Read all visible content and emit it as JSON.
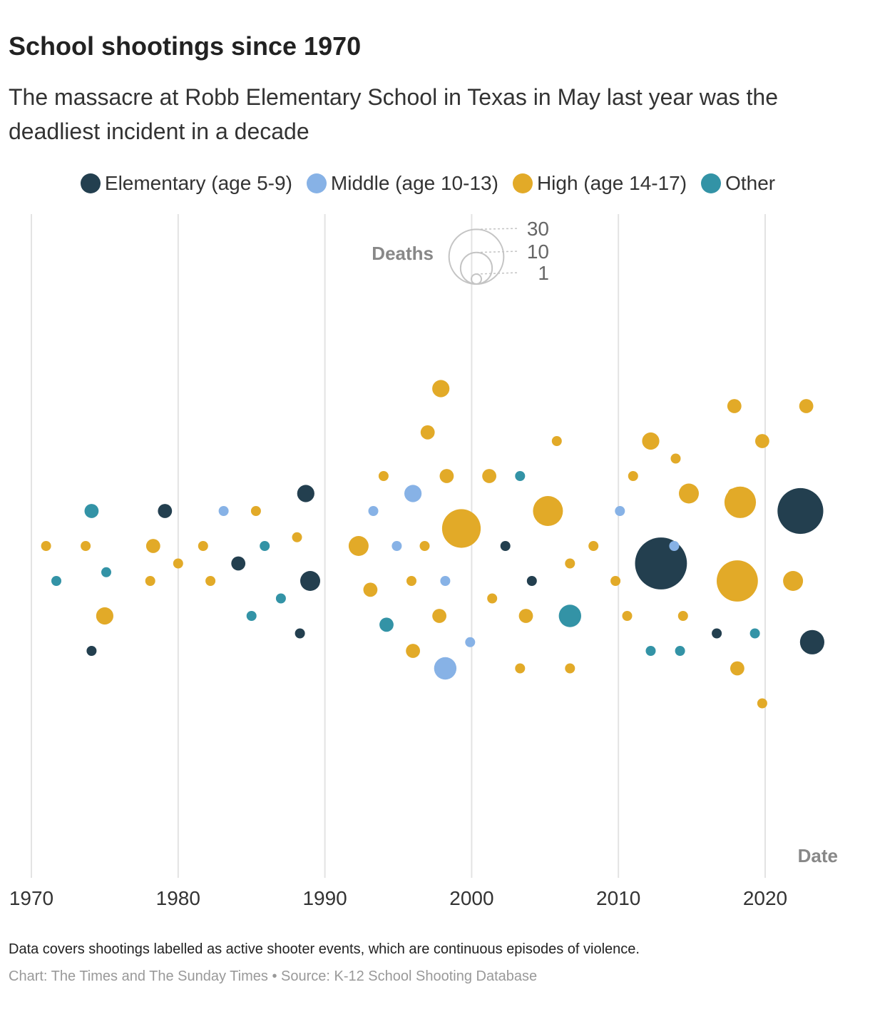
{
  "header": {
    "title": "School shootings since 1970",
    "subtitle": "The massacre at Robb Elementary School in Texas in May last year was the deadliest incident in a decade"
  },
  "legend": [
    {
      "key": "elementary",
      "label": "Elementary (age 5-9)",
      "color": "#233f4f"
    },
    {
      "key": "middle",
      "label": "Middle (age 10-13)",
      "color": "#87b2e6"
    },
    {
      "key": "high",
      "label": "High (age 14-17)",
      "color": "#e2aa28"
    },
    {
      "key": "other",
      "label": "Other",
      "color": "#3393a6"
    }
  ],
  "footer": {
    "note": "Data covers shootings labelled as active shooter events, which are continuous episodes of violence.",
    "credit": "Chart: The Times and The Sunday Times • Source: K-12 School Shooting Database"
  },
  "chart_data": {
    "type": "scatter",
    "title": "School shootings since 1970",
    "xlabel": "Date",
    "xlim": [
      1970,
      2025
    ],
    "x_ticks": [
      "1970",
      "1980",
      "1990",
      "2000",
      "2010",
      "2020"
    ],
    "size_legend": {
      "title": "Deaths",
      "values": [
        30,
        10,
        1
      ]
    },
    "series": [
      {
        "name": "Elementary (age 5-9)",
        "key": "elementary",
        "color": "#233f4f",
        "points": [
          {
            "x": 1974.1,
            "y": -6,
            "deaths": 1
          },
          {
            "x": 1979.1,
            "y": 2,
            "deaths": 2
          },
          {
            "x": 1984.1,
            "y": -1,
            "deaths": 2
          },
          {
            "x": 1988.3,
            "y": -5,
            "deaths": 1
          },
          {
            "x": 1988.7,
            "y": 3,
            "deaths": 3
          },
          {
            "x": 1989.0,
            "y": -2,
            "deaths": 4
          },
          {
            "x": 2002.3,
            "y": 0,
            "deaths": 1
          },
          {
            "x": 2004.1,
            "y": -2,
            "deaths": 1
          },
          {
            "x": 2012.9,
            "y": -1,
            "deaths": 27
          },
          {
            "x": 2016.7,
            "y": -5,
            "deaths": 1
          },
          {
            "x": 2022.4,
            "y": 2,
            "deaths": 21
          },
          {
            "x": 2023.2,
            "y": -5.5,
            "deaths": 6
          }
        ]
      },
      {
        "name": "Middle (age 10-13)",
        "key": "middle",
        "color": "#87b2e6",
        "points": [
          {
            "x": 1983.1,
            "y": 2,
            "deaths": 1
          },
          {
            "x": 1993.3,
            "y": 2,
            "deaths": 1
          },
          {
            "x": 1994.9,
            "y": 0,
            "deaths": 1
          },
          {
            "x": 1996.0,
            "y": 3,
            "deaths": 3
          },
          {
            "x": 1998.2,
            "y": -2,
            "deaths": 1
          },
          {
            "x": 1998.2,
            "y": -7,
            "deaths": 5
          },
          {
            "x": 1999.9,
            "y": -5.5,
            "deaths": 1
          },
          {
            "x": 2010.1,
            "y": 2,
            "deaths": 1
          },
          {
            "x": 2013.8,
            "y": 0,
            "deaths": 1
          }
        ]
      },
      {
        "name": "High (age 14-17)",
        "key": "high",
        "color": "#e2aa28",
        "points": [
          {
            "x": 1971.0,
            "y": 0,
            "deaths": 1
          },
          {
            "x": 1973.7,
            "y": 0,
            "deaths": 1
          },
          {
            "x": 1975.0,
            "y": -4,
            "deaths": 3
          },
          {
            "x": 1978.1,
            "y": -2,
            "deaths": 1
          },
          {
            "x": 1978.3,
            "y": 0,
            "deaths": 2
          },
          {
            "x": 1980.0,
            "y": -1,
            "deaths": 1
          },
          {
            "x": 1981.7,
            "y": 0,
            "deaths": 1
          },
          {
            "x": 1982.2,
            "y": -2,
            "deaths": 1
          },
          {
            "x": 1985.3,
            "y": 2,
            "deaths": 1
          },
          {
            "x": 1988.1,
            "y": 0.5,
            "deaths": 1
          },
          {
            "x": 1992.3,
            "y": 0,
            "deaths": 4
          },
          {
            "x": 1993.1,
            "y": -2.5,
            "deaths": 2
          },
          {
            "x": 1994.0,
            "y": 4,
            "deaths": 1
          },
          {
            "x": 1995.9,
            "y": -2,
            "deaths": 1
          },
          {
            "x": 1996.0,
            "y": -6,
            "deaths": 2
          },
          {
            "x": 1996.8,
            "y": 0,
            "deaths": 1
          },
          {
            "x": 1997.0,
            "y": 6.5,
            "deaths": 2
          },
          {
            "x": 1997.8,
            "y": -4,
            "deaths": 2
          },
          {
            "x": 1997.9,
            "y": 9,
            "deaths": 3
          },
          {
            "x": 1998.3,
            "y": 4,
            "deaths": 2
          },
          {
            "x": 1999.3,
            "y": 1,
            "deaths": 15
          },
          {
            "x": 2001.2,
            "y": 4,
            "deaths": 2
          },
          {
            "x": 2001.4,
            "y": -3,
            "deaths": 1
          },
          {
            "x": 2003.3,
            "y": -7,
            "deaths": 1
          },
          {
            "x": 2003.7,
            "y": -4,
            "deaths": 2
          },
          {
            "x": 2005.2,
            "y": 2,
            "deaths": 9
          },
          {
            "x": 2005.8,
            "y": 6,
            "deaths": 1
          },
          {
            "x": 2006.7,
            "y": -1,
            "deaths": 1
          },
          {
            "x": 2006.7,
            "y": -7,
            "deaths": 1
          },
          {
            "x": 2008.3,
            "y": 0,
            "deaths": 1
          },
          {
            "x": 2009.8,
            "y": -2,
            "deaths": 1
          },
          {
            "x": 2010.6,
            "y": -4,
            "deaths": 1
          },
          {
            "x": 2011.0,
            "y": 4,
            "deaths": 1
          },
          {
            "x": 2012.2,
            "y": 6,
            "deaths": 3
          },
          {
            "x": 2013.9,
            "y": 5,
            "deaths": 1
          },
          {
            "x": 2014.4,
            "y": -4,
            "deaths": 1
          },
          {
            "x": 2014.8,
            "y": 3,
            "deaths": 4
          },
          {
            "x": 2017.8,
            "y": 3,
            "deaths": 1
          },
          {
            "x": 2017.9,
            "y": 8,
            "deaths": 2
          },
          {
            "x": 2018.1,
            "y": -7,
            "deaths": 2
          },
          {
            "x": 2018.1,
            "y": -2,
            "deaths": 17
          },
          {
            "x": 2018.3,
            "y": 2.5,
            "deaths": 10
          },
          {
            "x": 2019.8,
            "y": 6,
            "deaths": 2
          },
          {
            "x": 2019.8,
            "y": -9,
            "deaths": 1
          },
          {
            "x": 2021.9,
            "y": -2,
            "deaths": 4
          },
          {
            "x": 2022.8,
            "y": 8,
            "deaths": 2
          }
        ]
      },
      {
        "name": "Other",
        "key": "other",
        "color": "#3393a6",
        "points": [
          {
            "x": 1971.7,
            "y": -2,
            "deaths": 1
          },
          {
            "x": 1974.1,
            "y": 2,
            "deaths": 2
          },
          {
            "x": 1975.1,
            "y": -1.5,
            "deaths": 1
          },
          {
            "x": 1985.0,
            "y": -4,
            "deaths": 1
          },
          {
            "x": 1985.9,
            "y": 0,
            "deaths": 1
          },
          {
            "x": 1987.0,
            "y": -3,
            "deaths": 1
          },
          {
            "x": 1994.2,
            "y": -4.5,
            "deaths": 2
          },
          {
            "x": 2003.3,
            "y": 4,
            "deaths": 1
          },
          {
            "x": 2006.7,
            "y": -4,
            "deaths": 5
          },
          {
            "x": 2012.2,
            "y": -6,
            "deaths": 1
          },
          {
            "x": 2014.2,
            "y": -6,
            "deaths": 1
          },
          {
            "x": 2019.3,
            "y": -5,
            "deaths": 1
          }
        ]
      }
    ]
  }
}
